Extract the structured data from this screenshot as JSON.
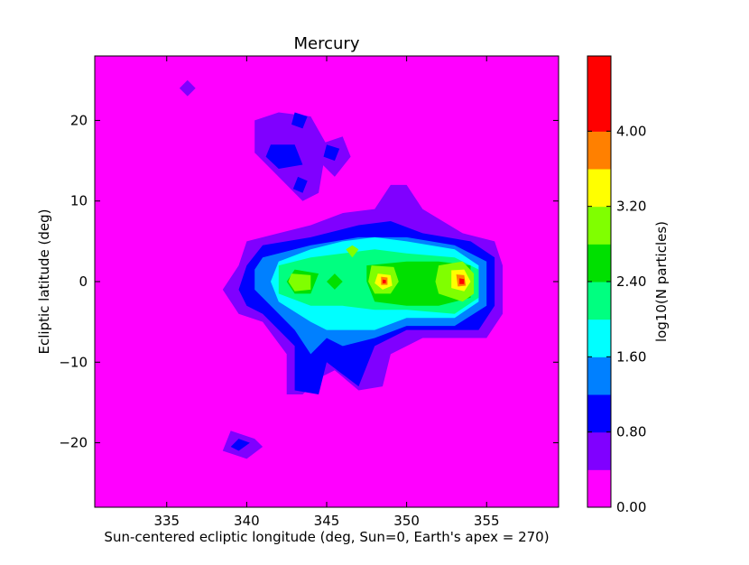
{
  "chart_data": {
    "type": "contour",
    "title": "Mercury",
    "xlabel": "Sun-centered ecliptic longitude (deg, Sun=0, Earth's apex = 270)",
    "ylabel": "Ecliptic latitude (deg)",
    "xlim": [
      330.5,
      359.5
    ],
    "ylim": [
      -28,
      28
    ],
    "x_ticks": [
      335,
      340,
      345,
      350,
      355
    ],
    "x_tick_labels": [
      "335",
      "340",
      "345",
      "350",
      "355"
    ],
    "y_ticks": [
      20,
      10,
      0,
      -10,
      -20
    ],
    "y_tick_labels": [
      "20",
      "10",
      "0",
      "−10",
      "−20"
    ],
    "colorbar": {
      "label": "log10(N particles)",
      "levels": [
        0.0,
        0.4,
        0.8,
        1.2,
        1.6,
        2.0,
        2.4,
        2.8,
        3.2,
        3.6,
        4.0,
        4.4,
        4.8
      ],
      "colors": [
        "#ff00ff",
        "#8000ff",
        "#0000ff",
        "#0080ff",
        "#00ffff",
        "#00ff80",
        "#00e000",
        "#80ff00",
        "#ffff00",
        "#ff8000",
        "#ff0000",
        "#ff0000"
      ],
      "tick_values": [
        0.0,
        0.8,
        1.6,
        2.4,
        3.2,
        4.0
      ],
      "tick_labels": [
        "0.00",
        "0.80",
        "1.60",
        "2.40",
        "3.20",
        "4.00"
      ]
    },
    "contour_regions": [
      {
        "level": 0.4,
        "points": [
          [
            340.5,
            20
          ],
          [
            342,
            21
          ],
          [
            344,
            20.5
          ],
          [
            345,
            17
          ],
          [
            344.5,
            11
          ],
          [
            343.5,
            10
          ],
          [
            342,
            13
          ],
          [
            340.5,
            16
          ]
        ]
      },
      {
        "level": 0.4,
        "points": [
          [
            344.5,
            17
          ],
          [
            346,
            18
          ],
          [
            346.5,
            15.5
          ],
          [
            345.5,
            13
          ],
          [
            344.5,
            15
          ]
        ]
      },
      {
        "level": 0.4,
        "points": [
          [
            336.3,
            25
          ],
          [
            336.8,
            24
          ],
          [
            336.3,
            23
          ],
          [
            335.8,
            24
          ]
        ]
      },
      {
        "level": 0.4,
        "points": [
          [
            339,
            -18.5
          ],
          [
            340.5,
            -19.5
          ],
          [
            341,
            -20.5
          ],
          [
            340,
            -22
          ],
          [
            338.5,
            -21
          ]
        ]
      },
      {
        "level": 0.4,
        "points": [
          [
            340,
            5
          ],
          [
            342,
            6
          ],
          [
            344,
            7
          ],
          [
            346,
            8.5
          ],
          [
            348,
            9
          ],
          [
            349,
            12
          ],
          [
            350,
            12
          ],
          [
            351,
            9
          ],
          [
            353.5,
            6
          ],
          [
            355.5,
            5
          ],
          [
            356,
            2
          ],
          [
            356,
            -4
          ],
          [
            355,
            -7
          ],
          [
            351,
            -7
          ],
          [
            349,
            -9
          ],
          [
            348.5,
            -13
          ],
          [
            347,
            -13.5
          ],
          [
            345.5,
            -11
          ],
          [
            344.5,
            -12
          ],
          [
            343.5,
            -14
          ],
          [
            342.5,
            -14
          ],
          [
            342.5,
            -9
          ],
          [
            341,
            -5
          ],
          [
            339.5,
            -4
          ],
          [
            338.5,
            -1
          ],
          [
            339.5,
            2
          ]
        ]
      },
      {
        "level": 0.8,
        "points": [
          [
            341.5,
            17
          ],
          [
            343,
            17
          ],
          [
            343.5,
            14.5
          ],
          [
            342,
            14
          ],
          [
            341.2,
            15.5
          ]
        ]
      },
      {
        "level": 0.8,
        "points": [
          [
            343,
            21
          ],
          [
            343.8,
            20.5
          ],
          [
            343.5,
            19
          ],
          [
            342.8,
            19.5
          ]
        ]
      },
      {
        "level": 0.8,
        "points": [
          [
            345,
            17
          ],
          [
            345.8,
            16.5
          ],
          [
            345.5,
            15
          ],
          [
            344.8,
            15.5
          ]
        ]
      },
      {
        "level": 0.8,
        "points": [
          [
            343.2,
            13
          ],
          [
            343.8,
            12.5
          ],
          [
            343.5,
            11
          ],
          [
            342.9,
            11.5
          ]
        ]
      },
      {
        "level": 0.8,
        "points": [
          [
            339.5,
            -19.5
          ],
          [
            340.2,
            -20
          ],
          [
            339.5,
            -21
          ],
          [
            339,
            -20.5
          ]
        ]
      },
      {
        "level": 0.8,
        "points": [
          [
            341,
            4.5
          ],
          [
            344,
            5.5
          ],
          [
            347,
            7
          ],
          [
            349,
            7.5
          ],
          [
            351,
            6
          ],
          [
            354,
            5
          ],
          [
            355.5,
            3
          ],
          [
            355.5,
            -3
          ],
          [
            354.5,
            -6
          ],
          [
            350,
            -6
          ],
          [
            348,
            -8
          ],
          [
            347,
            -13
          ],
          [
            345,
            -10
          ],
          [
            344.5,
            -14
          ],
          [
            343,
            -13.5
          ],
          [
            343,
            -8
          ],
          [
            341,
            -4
          ],
          [
            340,
            -3
          ],
          [
            339.5,
            -1
          ],
          [
            340,
            2
          ]
        ]
      },
      {
        "level": 1.2,
        "points": [
          [
            341,
            3
          ],
          [
            344,
            4.5
          ],
          [
            347,
            5.5
          ],
          [
            350,
            5.5
          ],
          [
            353,
            4.5
          ],
          [
            355,
            2.5
          ],
          [
            355,
            -3
          ],
          [
            353,
            -5.5
          ],
          [
            350,
            -5.5
          ],
          [
            348,
            -7
          ],
          [
            346,
            -8
          ],
          [
            345,
            -7
          ],
          [
            344,
            -9
          ],
          [
            343,
            -6
          ],
          [
            341.5,
            -3
          ],
          [
            340.5,
            -1
          ],
          [
            340.5,
            1.5
          ]
        ]
      },
      {
        "level": 1.6,
        "points": [
          [
            342,
            2.5
          ],
          [
            344,
            4
          ],
          [
            346,
            5
          ],
          [
            348,
            5.5
          ],
          [
            350,
            5
          ],
          [
            353,
            4
          ],
          [
            354.5,
            2
          ],
          [
            354.5,
            -2.5
          ],
          [
            353,
            -4.5
          ],
          [
            350,
            -4.5
          ],
          [
            348,
            -6
          ],
          [
            346,
            -6
          ],
          [
            345,
            -6
          ],
          [
            344,
            -5
          ],
          [
            342,
            -2.5
          ],
          [
            341.5,
            0
          ]
        ]
      },
      {
        "level": 2.0,
        "points": [
          [
            342,
            2
          ],
          [
            344,
            3
          ],
          [
            346,
            3.5
          ],
          [
            348,
            4
          ],
          [
            350,
            3.5
          ],
          [
            353,
            3
          ],
          [
            354.5,
            1.5
          ],
          [
            354.5,
            -2
          ],
          [
            353,
            -4
          ],
          [
            350,
            -3.5
          ],
          [
            348,
            -3.5
          ],
          [
            346,
            -3
          ],
          [
            344,
            -3
          ],
          [
            342,
            -1.5
          ]
        ]
      },
      {
        "level": 2.4,
        "points": [
          [
            343,
            1.5
          ],
          [
            344.5,
            1
          ],
          [
            344,
            -1.5
          ],
          [
            343,
            -1.5
          ],
          [
            342.5,
            0
          ]
        ]
      },
      {
        "level": 2.4,
        "points": [
          [
            345.5,
            1
          ],
          [
            346,
            0
          ],
          [
            345.5,
            -1
          ],
          [
            345,
            0
          ]
        ]
      },
      {
        "level": 2.4,
        "points": [
          [
            347.5,
            2
          ],
          [
            350,
            2.5
          ],
          [
            352,
            2.5
          ],
          [
            354,
            2
          ],
          [
            354,
            -2
          ],
          [
            352,
            -3
          ],
          [
            350,
            -3
          ],
          [
            348,
            -2.5
          ],
          [
            347.5,
            0
          ]
        ]
      },
      {
        "level": 2.8,
        "points": [
          [
            342.8,
            1
          ],
          [
            344,
            0.8
          ],
          [
            344,
            -1
          ],
          [
            343,
            -1.2
          ],
          [
            342.6,
            0
          ]
        ]
      },
      {
        "level": 2.8,
        "points": [
          [
            347.8,
            2
          ],
          [
            349.2,
            1.8
          ],
          [
            349.5,
            0
          ],
          [
            349,
            -1.5
          ],
          [
            348,
            -1.5
          ],
          [
            347.6,
            0
          ]
        ]
      },
      {
        "level": 2.8,
        "points": [
          [
            352,
            2
          ],
          [
            353.5,
            2.5
          ],
          [
            354.2,
            1
          ],
          [
            354.2,
            -1.5
          ],
          [
            353.5,
            -2.5
          ],
          [
            352,
            -1.5
          ],
          [
            351.8,
            0
          ]
        ]
      },
      {
        "level": 2.8,
        "points": [
          [
            346.6,
            4.5
          ],
          [
            347,
            4
          ],
          [
            346.6,
            3
          ],
          [
            346.2,
            4
          ]
        ]
      },
      {
        "level": 3.2,
        "points": [
          [
            348.2,
            1
          ],
          [
            349,
            0.8
          ],
          [
            349.1,
            -0.5
          ],
          [
            348.5,
            -1
          ],
          [
            348,
            -0.2
          ]
        ]
      },
      {
        "level": 3.2,
        "points": [
          [
            352.8,
            1.4
          ],
          [
            353.6,
            1.5
          ],
          [
            354,
            0
          ],
          [
            353.6,
            -1.2
          ],
          [
            352.8,
            -0.8
          ]
        ]
      },
      {
        "level": 3.6,
        "points": [
          [
            348.4,
            0.6
          ],
          [
            348.8,
            0.5
          ],
          [
            348.8,
            -0.4
          ],
          [
            348.4,
            -0.4
          ]
        ]
      },
      {
        "level": 3.6,
        "points": [
          [
            353.1,
            0.9
          ],
          [
            353.6,
            0.8
          ],
          [
            353.7,
            -0.5
          ],
          [
            353.2,
            -0.6
          ]
        ]
      },
      {
        "level": 4.0,
        "points": [
          [
            348.5,
            0.25
          ],
          [
            348.7,
            0.2
          ],
          [
            348.7,
            -0.2
          ],
          [
            348.5,
            -0.2
          ]
        ]
      },
      {
        "level": 4.0,
        "points": [
          [
            353.3,
            0.4
          ],
          [
            353.6,
            0.3
          ],
          [
            353.6,
            -0.3
          ],
          [
            353.3,
            -0.3
          ]
        ]
      }
    ]
  }
}
